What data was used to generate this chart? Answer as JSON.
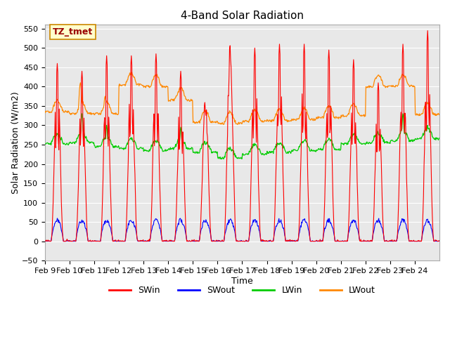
{
  "title": "4-Band Solar Radiation",
  "xlabel": "Time",
  "ylabel": "Solar Radiation (W/m2)",
  "annotation": "TZ_tmet",
  "ylim": [
    -50,
    560
  ],
  "yticks": [
    -50,
    0,
    50,
    100,
    150,
    200,
    250,
    300,
    350,
    400,
    450,
    500,
    550
  ],
  "xtick_labels": [
    "Feb 9",
    "Feb 10",
    "Feb 11",
    "Feb 12",
    "Feb 13",
    "Feb 14",
    "Feb 15",
    "Feb 16",
    "Feb 17",
    "Feb 18",
    "Feb 19",
    "Feb 20",
    "Feb 21",
    "Feb 22",
    "Feb 23",
    "Feb 24"
  ],
  "colors": {
    "SWin": "#ff0000",
    "SWout": "#0000ff",
    "LWin": "#00cc00",
    "LWout": "#ff8800"
  },
  "n_days": 16,
  "pts_per_day": 48,
  "background": "#e8e8e8",
  "legend_labels": [
    "SWin",
    "SWout",
    "LWin",
    "LWout"
  ]
}
